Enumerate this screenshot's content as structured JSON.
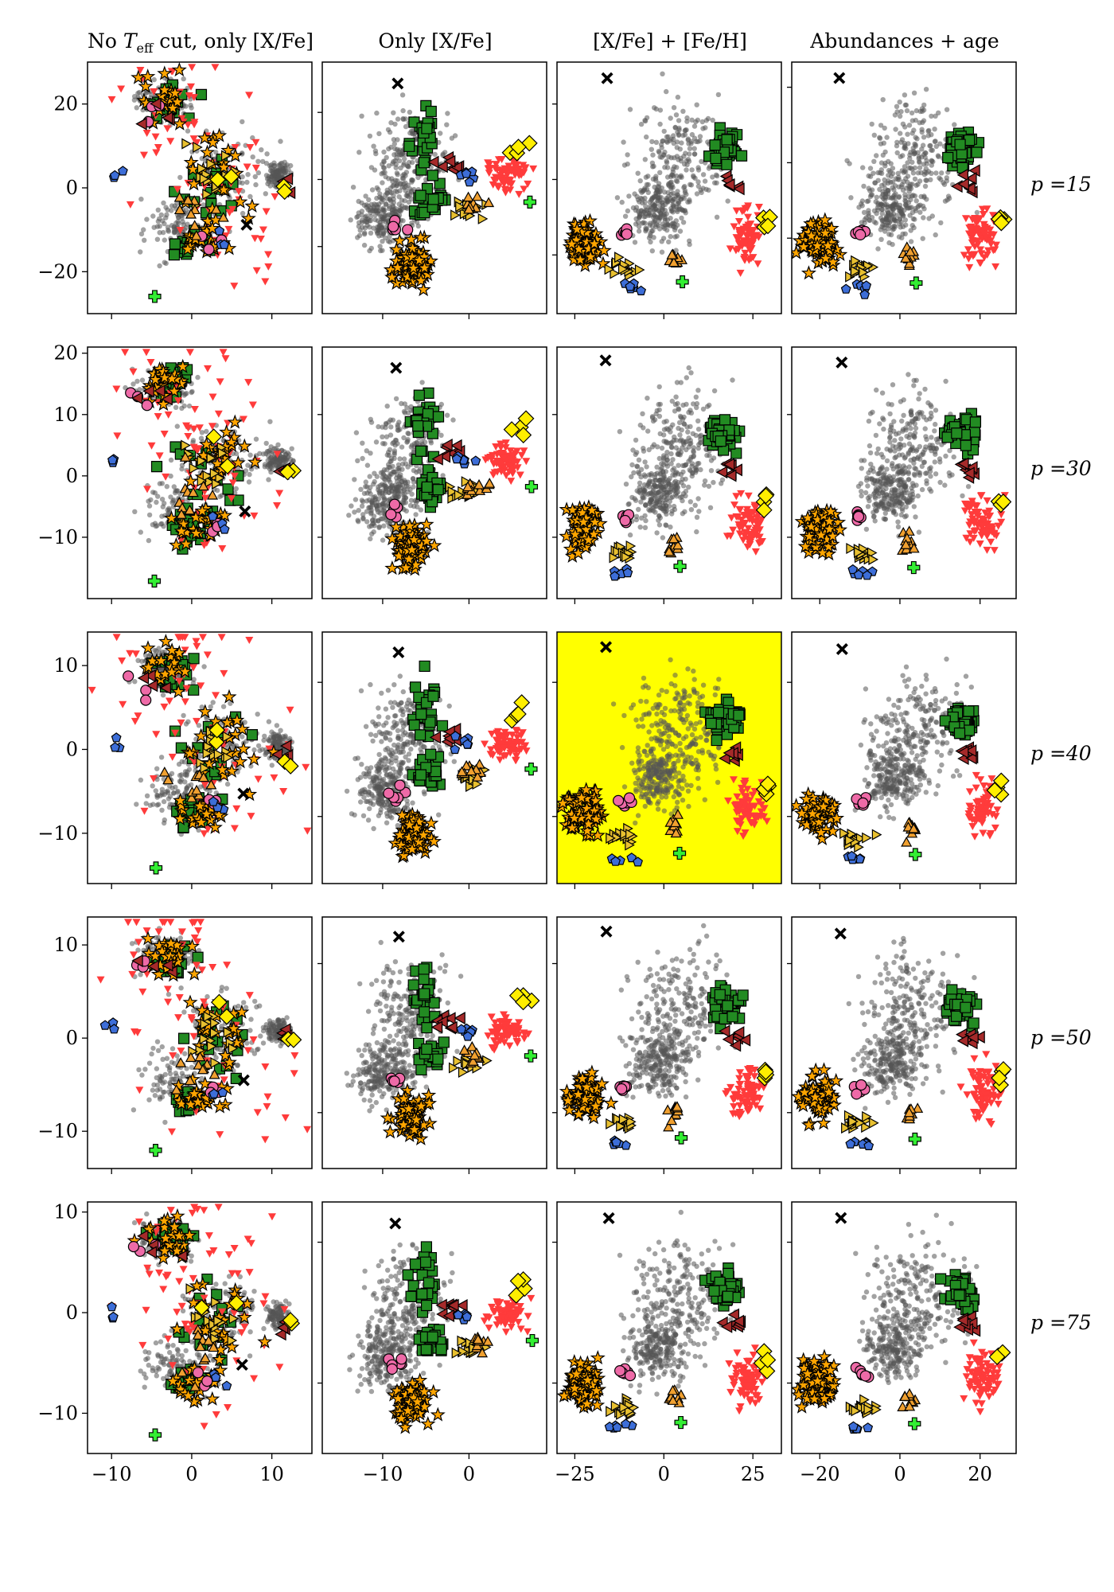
{
  "column_titles": [
    "No T_eff cut, only [X/Fe]",
    "Only [X/Fe]",
    "[X/Fe] + [Fe/H]",
    "Abundances + age"
  ],
  "row_labels": [
    "p =15",
    "p =30",
    "p =40",
    "p =50",
    "p =75"
  ],
  "highlighted_panel": {
    "row": 2,
    "col": 2,
    "color": "#ffff00"
  },
  "marker_styles": [
    {
      "key": "bg",
      "shape": "circle",
      "fill": "#555555",
      "opacity": 0.55,
      "edge": "none"
    },
    {
      "key": "green",
      "shape": "square",
      "fill": "#228b22",
      "edge": "#000000"
    },
    {
      "key": "red",
      "shape": "triangle-down",
      "fill": "#ff3b3b",
      "edge": "none"
    },
    {
      "key": "orange",
      "shape": "star",
      "fill": "#ffa500",
      "edge": "#000000"
    },
    {
      "key": "pink",
      "shape": "circle",
      "fill": "#ee6aa7",
      "edge": "#000000"
    },
    {
      "key": "gold",
      "shape": "triangle-right",
      "fill": "#e8c030",
      "edge": "#000000"
    },
    {
      "key": "gold2",
      "shape": "triangle-up",
      "fill": "#f0a030",
      "edge": "#000000"
    },
    {
      "key": "darkred",
      "shape": "triangle-left",
      "fill": "#a52a2a",
      "edge": "#000000"
    },
    {
      "key": "yellow",
      "shape": "diamond",
      "fill": "#ffee00",
      "edge": "#000000"
    },
    {
      "key": "blue",
      "shape": "pentagon",
      "fill": "#3d6ed8",
      "edge": "#000000"
    },
    {
      "key": "green_plus",
      "shape": "plus",
      "fill": "#33ee33",
      "edge": "#000000"
    },
    {
      "key": "black_x",
      "shape": "x",
      "fill": "#000000",
      "edge": "none"
    }
  ],
  "chart_data": [
    {
      "type": "scatter",
      "columns": [
        "No T_eff cut, only [X/Fe]",
        "Only [X/Fe]",
        "[X/Fe] + [Fe/H]",
        "Abundances + age"
      ],
      "rows": [
        "p =15",
        "p =30",
        "p =40",
        "p =50",
        "p =75"
      ],
      "x_ticks": [
        [
          "-10",
          "0",
          "10"
        ],
        [
          "-10",
          "0"
        ],
        [
          "-25",
          "0",
          "25"
        ],
        [
          "-20",
          "0",
          "20"
        ]
      ],
      "x_tick_values": [
        [
          -10,
          0,
          10
        ],
        [
          -10,
          0
        ],
        [
          -25,
          0,
          25
        ],
        [
          -20,
          0,
          20
        ]
      ],
      "y_ticks": [
        [
          [
            "20",
            "0",
            "-20"
          ],
          [],
          [],
          []
        ],
        [
          [
            "20",
            "10",
            "0",
            "-10"
          ],
          [],
          [],
          []
        ],
        [
          [
            "10",
            "0",
            "-10"
          ],
          [],
          [],
          []
        ],
        [
          [
            "10",
            "0",
            "-10"
          ],
          [],
          [],
          []
        ],
        [
          [
            "10",
            "0",
            "-10"
          ],
          [],
          [],
          []
        ]
      ],
      "y_tick_values": [
        [
          20,
          0,
          -20
        ],
        [
          20,
          10,
          0,
          -10
        ],
        [
          10,
          0,
          -10
        ],
        [
          10,
          0,
          -10
        ],
        [
          10,
          0,
          -10
        ]
      ],
      "xlim": [
        [
          -13,
          15
        ],
        [
          -17,
          9
        ],
        [
          -30,
          33
        ],
        [
          -27,
          29
        ]
      ],
      "ylim": [
        [
          -30,
          30
        ],
        [
          -20,
          21
        ],
        [
          -16,
          14
        ],
        [
          -14,
          13
        ],
        [
          -14,
          11
        ]
      ],
      "unlabeled_y_ticks": [
        [
          [],
          [
            -14,
            2,
            18
          ],
          [
            -16,
            2,
            20
          ],
          [
            -12,
            6,
            24
          ]
        ],
        [
          [],
          [
            -10,
            10
          ],
          [
            -10,
            10
          ],
          [
            -10,
            10
          ]
        ],
        [
          [],
          [
            -8,
            8
          ],
          [
            -8,
            8
          ],
          [
            -8,
            8
          ]
        ],
        [
          [],
          [
            -8,
            8
          ],
          [
            -8,
            8
          ],
          [
            -8,
            8
          ]
        ],
        [
          [],
          [
            -7,
            7
          ],
          [
            -7,
            7
          ],
          [
            -7,
            7
          ]
        ]
      ],
      "grid": false,
      "legend": "none",
      "groups": [
        {
          "marker": "bg",
          "count": 440,
          "description": "background stars, diffuse"
        },
        {
          "marker": "green",
          "count": 50
        },
        {
          "marker": "red",
          "count": 70
        },
        {
          "marker": "orange",
          "count": 80
        },
        {
          "marker": "pink",
          "count": 6
        },
        {
          "marker": "gold",
          "count": 15
        },
        {
          "marker": "gold2",
          "count": 10
        },
        {
          "marker": "darkred",
          "count": 8
        },
        {
          "marker": "yellow",
          "count": 4
        },
        {
          "marker": "blue",
          "count": 6
        },
        {
          "marker": "green_plus",
          "count": 1
        },
        {
          "marker": "black_x",
          "count": 1
        }
      ]
    }
  ]
}
